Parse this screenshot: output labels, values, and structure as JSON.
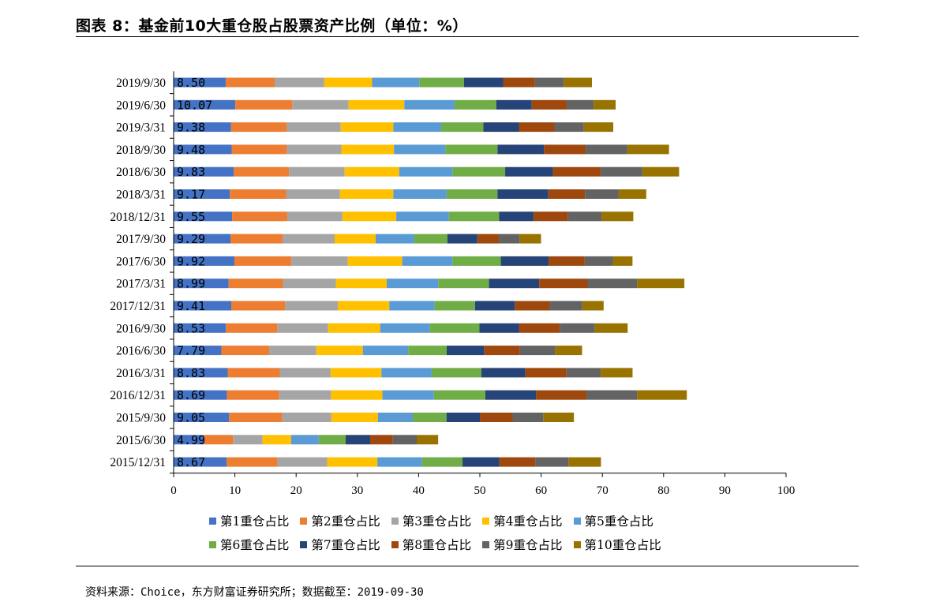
{
  "figure": {
    "title": "图表 8：基金前10大重仓股占股票资产比例（单位：%）",
    "source": "资料来源：Choice，东方财富证券研究所；数据截至：2019-09-30"
  },
  "chart_data": {
    "type": "bar",
    "orientation": "horizontal",
    "stacked": true,
    "title": "",
    "xlim": [
      0,
      100
    ],
    "x_ticks": [
      0,
      10,
      20,
      30,
      40,
      50,
      60,
      70,
      80,
      90,
      100
    ],
    "grid": false,
    "legend_position": "bottom",
    "categories": [
      "2019/9/30",
      "2019/6/30",
      "2019/3/31",
      "2018/9/30",
      "2018/6/30",
      "2018/3/31",
      "2018/12/31",
      "2017/9/30",
      "2017/6/30",
      "2017/3/31",
      "2017/12/31",
      "2016/9/30",
      "2016/6/30",
      "2016/3/31",
      "2016/12/31",
      "2015/9/30",
      "2015/6/30",
      "2015/12/31"
    ],
    "data_labels": [
      "8.50",
      "10.07",
      "9.38",
      "9.48",
      "9.83",
      "9.17",
      "9.55",
      "9.29",
      "9.92",
      "8.99",
      "9.41",
      "8.53",
      "7.79",
      "8.83",
      "8.69",
      "9.05",
      "4.99",
      "8.67"
    ],
    "series": [
      {
        "name": "第1重仓占比",
        "color": "#4472C4",
        "values": [
          8.5,
          10.07,
          9.38,
          9.48,
          9.83,
          9.17,
          9.55,
          9.29,
          9.92,
          8.99,
          9.41,
          8.53,
          7.79,
          8.83,
          8.69,
          9.05,
          4.99,
          8.67
        ]
      },
      {
        "name": "第2重仓占比",
        "color": "#ED7D31",
        "values": [
          8.0,
          9.3,
          9.1,
          9.0,
          9.0,
          9.2,
          9.0,
          8.5,
          9.3,
          8.9,
          8.8,
          8.4,
          7.8,
          8.5,
          8.5,
          8.7,
          4.7,
          8.3
        ]
      },
      {
        "name": "第3重仓占比",
        "color": "#A5A5A5",
        "values": [
          8.1,
          9.2,
          8.8,
          8.9,
          9.1,
          8.8,
          9.0,
          8.5,
          9.2,
          8.6,
          8.6,
          8.3,
          7.7,
          8.3,
          8.5,
          8.0,
          4.8,
          8.1
        ]
      },
      {
        "name": "第4重仓占比",
        "color": "#FFC000",
        "values": [
          7.8,
          9.1,
          8.6,
          8.6,
          8.9,
          8.7,
          8.8,
          6.7,
          8.9,
          8.3,
          8.4,
          8.5,
          7.6,
          8.3,
          8.4,
          7.6,
          4.7,
          8.2
        ]
      },
      {
        "name": "第5重仓占比",
        "color": "#5B9BD5",
        "values": [
          7.7,
          8.2,
          7.8,
          8.4,
          8.7,
          8.7,
          8.6,
          6.3,
          8.2,
          8.4,
          7.4,
          8.1,
          7.4,
          8.2,
          8.4,
          5.7,
          4.5,
          7.3
        ]
      },
      {
        "name": "第6重仓占比",
        "color": "#70AD47",
        "values": [
          7.3,
          6.8,
          6.9,
          8.5,
          8.6,
          8.3,
          8.2,
          5.4,
          7.9,
          8.3,
          6.6,
          8.1,
          6.3,
          8.1,
          8.4,
          5.5,
          4.4,
          6.6
        ]
      },
      {
        "name": "第7重仓占比",
        "color": "#264478",
        "values": [
          6.4,
          5.8,
          5.8,
          7.6,
          7.8,
          8.3,
          5.6,
          4.9,
          7.8,
          8.2,
          6.5,
          6.5,
          6.1,
          7.2,
          8.3,
          5.5,
          4.0,
          6.0
        ]
      },
      {
        "name": "第8重仓占比",
        "color": "#9E480E",
        "values": [
          5.2,
          5.7,
          5.8,
          6.8,
          7.8,
          6.0,
          5.6,
          3.5,
          5.9,
          7.9,
          5.7,
          6.6,
          5.8,
          6.7,
          8.2,
          5.3,
          3.7,
          5.9
        ]
      },
      {
        "name": "第9重仓占比",
        "color": "#636363",
        "values": [
          4.7,
          4.4,
          4.8,
          6.8,
          6.8,
          5.5,
          5.5,
          3.4,
          4.6,
          8.1,
          5.3,
          5.7,
          5.8,
          5.6,
          8.3,
          5.0,
          3.9,
          5.4
        ]
      },
      {
        "name": "第10重仓占比",
        "color": "#997300",
        "values": [
          4.6,
          3.6,
          4.8,
          6.8,
          6.0,
          4.5,
          5.2,
          3.5,
          3.2,
          7.7,
          3.5,
          5.4,
          4.4,
          5.2,
          8.1,
          5.0,
          3.5,
          5.3
        ]
      }
    ]
  }
}
